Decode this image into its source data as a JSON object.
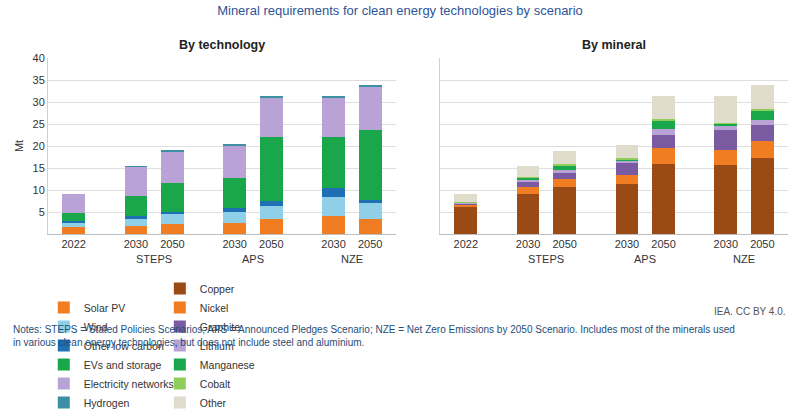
{
  "title": "Mineral requirements for clean energy technologies by scenario",
  "notes": [
    "Notes: STEPS = Stated Policies Scenarios; APS = Announced Pledges Scenario; NZE = Net Zero Emissions by 2050 Scenario. Includes most of the minerals used",
    "in various clean energy technologies, but does not include steel and aluminium."
  ],
  "source": "IEA. CC BY 4.0.",
  "chart_data": [
    {
      "type": "bar",
      "title": "By technology",
      "ylabel": "Mt",
      "stacked": true,
      "grid": true,
      "legend": "bottom",
      "categories": [
        "2022",
        "2030",
        "2050",
        "2030",
        "2050",
        "2030",
        "2050"
      ],
      "groups": [
        null,
        "STEPS",
        "STEPS",
        "APS",
        "APS",
        "NZE",
        "NZE"
      ],
      "ylim": [
        0,
        40
      ],
      "yticks": [
        5,
        10,
        15,
        20,
        25,
        30,
        35,
        40
      ],
      "series": [
        {
          "name": "Solar PV",
          "color": "#f07d22",
          "values": [
            1.7,
            1.8,
            2.3,
            2.4,
            3.3,
            4.2,
            3.4
          ]
        },
        {
          "name": "Wind",
          "color": "#8fd0e8",
          "values": [
            1.0,
            1.7,
            2.2,
            2.5,
            3.1,
            4.3,
            3.6
          ]
        },
        {
          "name": "Other low carbon",
          "color": "#1f6fb5",
          "values": [
            0.2,
            0.6,
            0.5,
            1.0,
            1.0,
            1.9,
            0.8
          ]
        },
        {
          "name": "EVs and storage",
          "color": "#1aa64a",
          "values": [
            1.9,
            4.5,
            6.6,
            6.8,
            14.7,
            11.6,
            15.9
          ]
        },
        {
          "name": "Electricity networks",
          "color": "#b8a2d6",
          "values": [
            4.4,
            6.7,
            7.2,
            7.5,
            9.0,
            9.1,
            9.9
          ]
        },
        {
          "name": "Hydrogen",
          "color": "#3d8fa3",
          "values": [
            0.0,
            0.1,
            0.1,
            0.1,
            0.2,
            0.2,
            0.2
          ]
        }
      ]
    },
    {
      "type": "bar",
      "title": "By mineral",
      "stacked": true,
      "grid": true,
      "legend": "bottom",
      "tick_labels": "x",
      "categories": [
        "2022",
        "2030",
        "2050",
        "2030",
        "2050",
        "2030",
        "2050"
      ],
      "groups": [
        null,
        "STEPS",
        "STEPS",
        "APS",
        "APS",
        "NZE",
        "NZE"
      ],
      "ylim": [
        0,
        40
      ],
      "yticks": [
        5,
        10,
        15,
        20,
        25,
        30,
        35,
        40
      ],
      "series": [
        {
          "name": "Copper",
          "color": "#9a4a15",
          "values": [
            6.2,
            9.2,
            10.6,
            11.3,
            15.8,
            15.7,
            17.3
          ]
        },
        {
          "name": "Nickel",
          "color": "#f07d22",
          "values": [
            0.4,
            1.5,
            1.8,
            2.2,
            3.8,
            3.5,
            3.8
          ]
        },
        {
          "name": "Graphite",
          "color": "#7a5aa0",
          "values": [
            0.4,
            1.3,
            1.5,
            2.6,
            3.0,
            4.5,
            3.6
          ]
        },
        {
          "name": "Lithium",
          "color": "#b8a2d6",
          "values": [
            0.1,
            0.4,
            0.6,
            0.5,
            1.2,
            0.9,
            1.1
          ]
        },
        {
          "name": "Manganese",
          "color": "#1aa64a",
          "values": [
            0.1,
            0.4,
            1.1,
            0.4,
            2.1,
            0.5,
            2.3
          ]
        },
        {
          "name": "Cobalt",
          "color": "#8fce5a",
          "values": [
            0.1,
            0.2,
            0.2,
            0.2,
            0.3,
            0.2,
            0.2
          ]
        },
        {
          "name": "Other",
          "color": "#e0dccb",
          "values": [
            1.9,
            2.4,
            3.1,
            3.1,
            5.1,
            6.0,
            5.5
          ]
        }
      ]
    }
  ]
}
